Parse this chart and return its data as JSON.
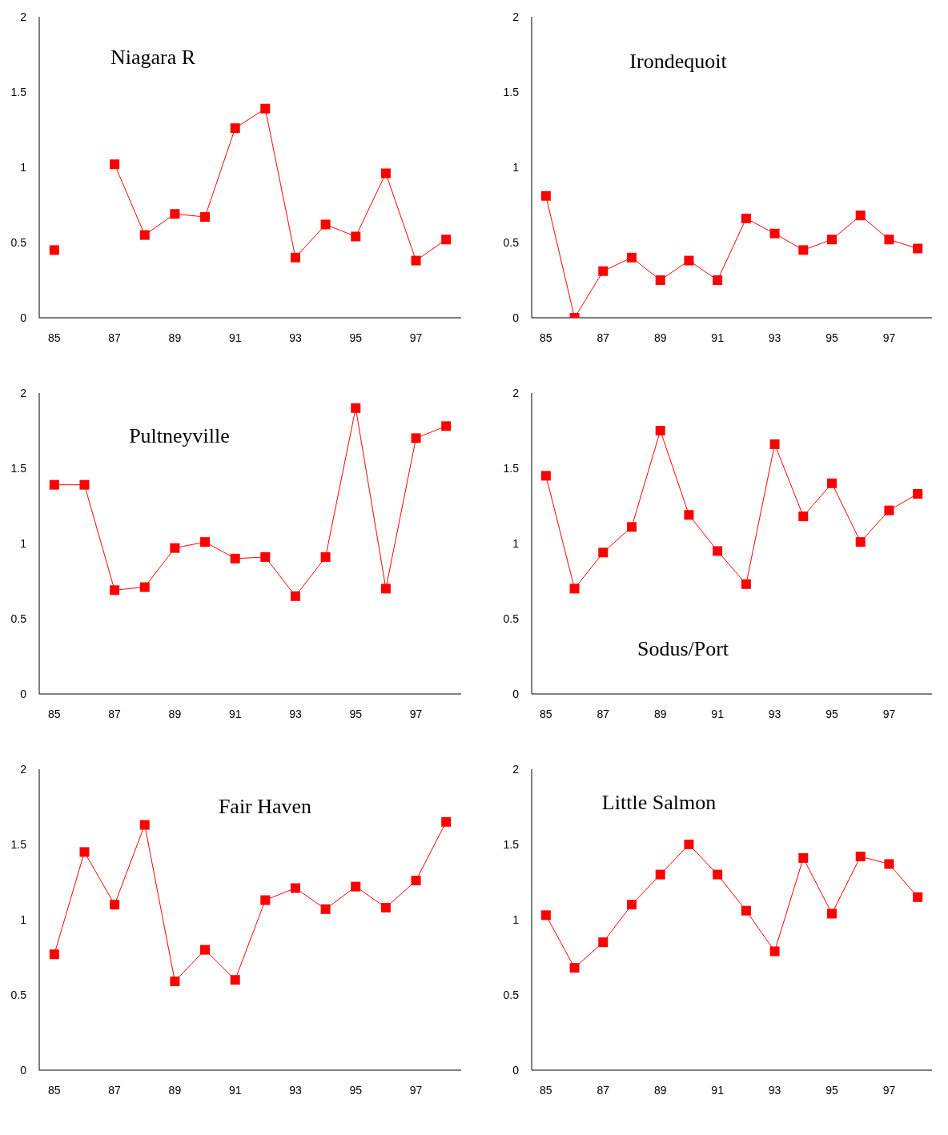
{
  "chart_data": [
    {
      "type": "line",
      "title": "Niagara R",
      "x": [
        85,
        86,
        87,
        88,
        89,
        90,
        91,
        92,
        93,
        94,
        95,
        96,
        97,
        98
      ],
      "xlim": [
        84.5,
        98.5
      ],
      "xticks": [
        85,
        87,
        89,
        91,
        93,
        95,
        97
      ],
      "ylim": [
        0,
        2
      ],
      "yticks": [
        0,
        0.5,
        1,
        1.5,
        2
      ],
      "marker": "square",
      "line_style": "solid",
      "series": [
        {
          "color": "#ff0000",
          "values": [
            0.45,
            null,
            1.02,
            0.55,
            0.69,
            0.67,
            1.26,
            1.39,
            0.4,
            0.62,
            0.54,
            0.96,
            0.38,
            0.52
          ]
        }
      ]
    },
    {
      "type": "line",
      "title": "Irondequoit",
      "x": [
        85,
        86,
        87,
        88,
        89,
        90,
        91,
        92,
        93,
        94,
        95,
        96,
        97,
        98
      ],
      "xlim": [
        84.5,
        98.5
      ],
      "xticks": [
        85,
        87,
        89,
        91,
        93,
        95,
        97
      ],
      "ylim": [
        0,
        2
      ],
      "yticks": [
        0,
        0.5,
        1,
        1.5,
        2
      ],
      "marker": "square",
      "line_style": "solid",
      "series": [
        {
          "color": "#ff0000",
          "values": [
            0.81,
            0,
            0.31,
            0.4,
            0.25,
            0.38,
            0.25,
            0.66,
            0.56,
            0.45,
            0.52,
            0.68,
            0.52,
            0.46
          ]
        }
      ]
    },
    {
      "type": "line",
      "title": "Pultneyville",
      "x": [
        85,
        86,
        87,
        88,
        89,
        90,
        91,
        92,
        93,
        94,
        95,
        96,
        97,
        98
      ],
      "xlim": [
        84.5,
        98.5
      ],
      "xticks": [
        85,
        87,
        89,
        91,
        93,
        95,
        97
      ],
      "ylim": [
        0,
        2
      ],
      "yticks": [
        0,
        0.5,
        1,
        1.5,
        2
      ],
      "marker": "square",
      "line_style": "solid",
      "series": [
        {
          "color": "#ff0000",
          "values": [
            1.39,
            1.39,
            0.69,
            0.71,
            0.97,
            1.01,
            0.9,
            0.91,
            0.65,
            0.91,
            1.9,
            0.7,
            1.7,
            1.78
          ]
        }
      ]
    },
    {
      "type": "line",
      "title": "Sodus/Port",
      "x": [
        85,
        86,
        87,
        88,
        89,
        90,
        91,
        92,
        93,
        94,
        95,
        96,
        97,
        98
      ],
      "xlim": [
        84.5,
        98.5
      ],
      "xticks": [
        85,
        87,
        89,
        91,
        93,
        95,
        97
      ],
      "ylim": [
        0,
        2
      ],
      "yticks": [
        0,
        0.5,
        1,
        1.5,
        2
      ],
      "marker": "square",
      "line_style": "solid",
      "series": [
        {
          "color": "#ff0000",
          "values": [
            1.45,
            0.7,
            0.94,
            1.11,
            1.75,
            1.19,
            0.95,
            0.73,
            1.66,
            1.18,
            1.4,
            1.01,
            1.22,
            1.33
          ]
        }
      ]
    },
    {
      "type": "line",
      "title": "Fair Haven",
      "x": [
        85,
        86,
        87,
        88,
        89,
        90,
        91,
        92,
        93,
        94,
        95,
        96,
        97,
        98
      ],
      "xlim": [
        84.5,
        98.5
      ],
      "xticks": [
        85,
        87,
        89,
        91,
        93,
        95,
        97
      ],
      "ylim": [
        0,
        2
      ],
      "yticks": [
        0,
        0.5,
        1,
        1.5,
        2
      ],
      "marker": "square",
      "line_style": "solid",
      "series": [
        {
          "color": "#ff0000",
          "values": [
            0.77,
            1.45,
            1.1,
            1.63,
            0.59,
            0.8,
            0.6,
            1.13,
            1.21,
            1.07,
            1.22,
            1.08,
            1.26,
            1.65
          ]
        }
      ]
    },
    {
      "type": "line",
      "title": "Little Salmon",
      "x": [
        85,
        86,
        87,
        88,
        89,
        90,
        91,
        92,
        93,
        94,
        95,
        96,
        97,
        98
      ],
      "xlim": [
        84.5,
        98.5
      ],
      "xticks": [
        85,
        87,
        89,
        91,
        93,
        95,
        97
      ],
      "ylim": [
        0,
        2
      ],
      "yticks": [
        0,
        0.5,
        1,
        1.5,
        2
      ],
      "marker": "square",
      "line_style": "solid",
      "series": [
        {
          "color": "#ff0000",
          "values": [
            1.03,
            0.68,
            0.85,
            1.1,
            1.3,
            1.5,
            1.3,
            1.06,
            0.79,
            1.41,
            1.04,
            1.42,
            1.37,
            1.15
          ]
        }
      ]
    }
  ]
}
